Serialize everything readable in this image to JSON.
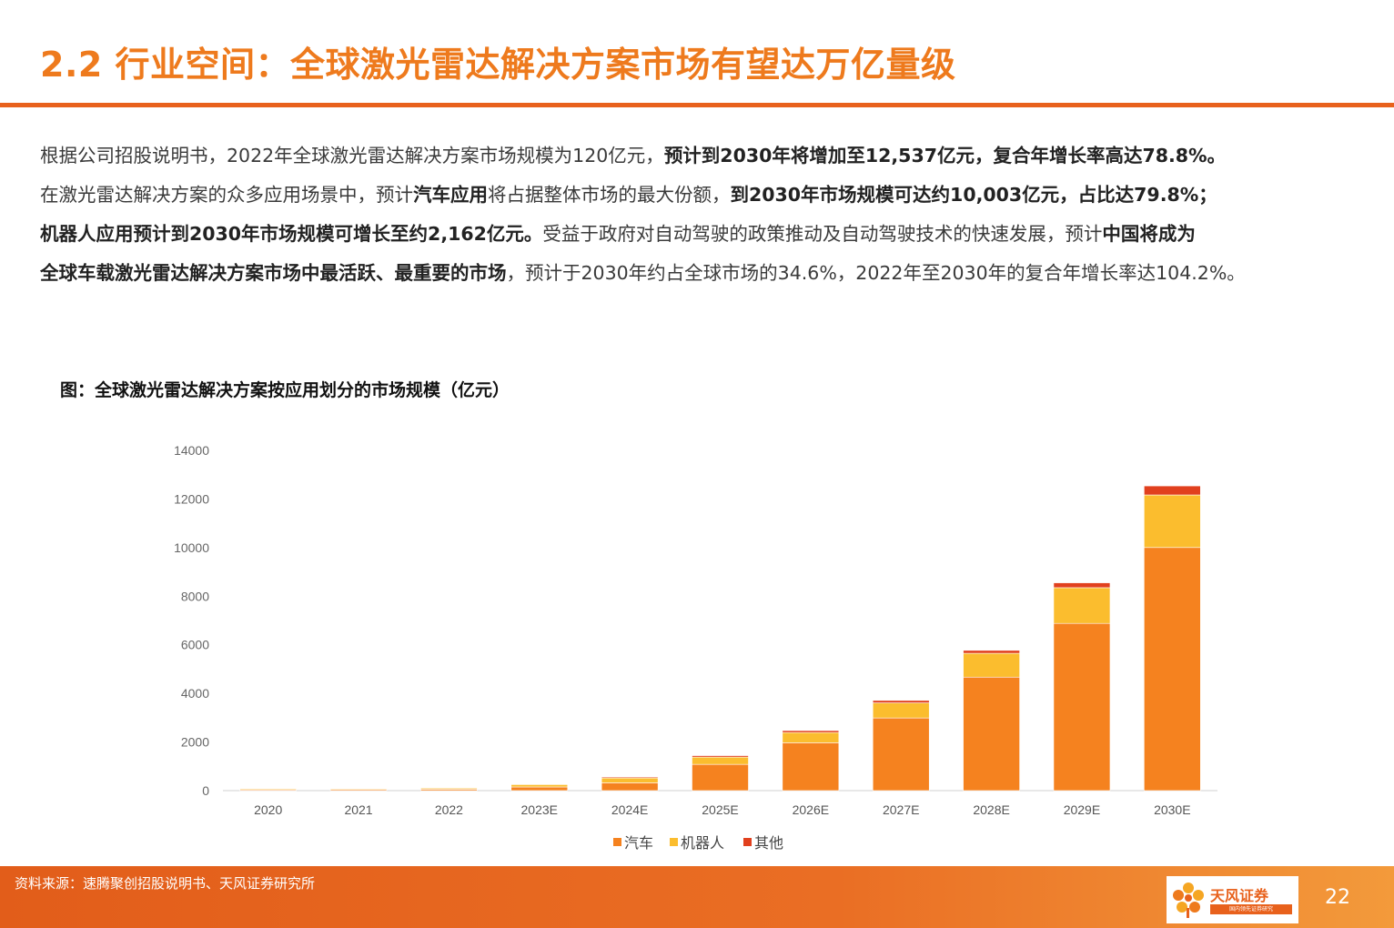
{
  "header": {
    "title": "2.2 行业空间：全球激光雷达解决方案市场有望达万亿量级"
  },
  "body": {
    "lines": [
      [
        {
          "text": "根据公司招股说明书，2022年全球激光雷达解决方案市场规模为120亿元，",
          "bold": false
        },
        {
          "text": "预计到2030年将增加至12,537亿元，复合年增长率高达78.8%。",
          "bold": true
        }
      ],
      [
        {
          "text": "在激光雷达解决方案的众多应用场景中，预计",
          "bold": false
        },
        {
          "text": "汽车应用",
          "bold": true
        },
        {
          "text": "将占据整体市场的最大份额，",
          "bold": false
        },
        {
          "text": "到2030年市场规模可达约10,003亿元，占比达79.8%；",
          "bold": true
        }
      ],
      [
        {
          "text": "机器人应用预计到2030年市场规模可增长至约2,162亿元。",
          "bold": true
        },
        {
          "text": "受益于政府对自动驾驶的政策推动及自动驾驶技术的快速发展，预计",
          "bold": false
        },
        {
          "text": "中国将成为",
          "bold": true
        }
      ],
      [
        {
          "text": "全球车载激光雷达解决方案市场中最活跃、最重要的市场",
          "bold": true
        },
        {
          "text": "，预计于2030年约占全球市场的34.6%，2022年至2030年的复合年增长率达104.2%。",
          "bold": false
        }
      ]
    ]
  },
  "figure": {
    "caption": "图：全球激光雷达解决方案按应用划分的市场规模（亿元）"
  },
  "chart_data": {
    "type": "bar",
    "stacked": true,
    "categories": [
      "2020",
      "2021",
      "2022",
      "2023E",
      "2024E",
      "2025E",
      "2026E",
      "2027E",
      "2028E",
      "2029E",
      "2030E"
    ],
    "series": [
      {
        "name": "汽车",
        "color": "#f5821f",
        "values": [
          40,
          45,
          60,
          150,
          320,
          1080,
          1970,
          2990,
          4670,
          6880,
          10003
        ]
      },
      {
        "name": "机器人",
        "color": "#fbbd2e",
        "values": [
          40,
          35,
          45,
          100,
          200,
          300,
          420,
          620,
          980,
          1470,
          2162
        ]
      },
      {
        "name": "其他",
        "color": "#e1401e",
        "values": [
          20,
          20,
          15,
          20,
          40,
          60,
          80,
          100,
          120,
          200,
          372
        ]
      }
    ],
    "ylim": [
      0,
      14000
    ],
    "yticks": [
      "0",
      "2000",
      "4000",
      "6000",
      "8000",
      "10000",
      "12000",
      "14000"
    ],
    "legend_position": "bottom-center",
    "grid": false
  },
  "footer": {
    "source": "资料来源：速腾聚创招股说明书、天风证券研究所",
    "logo_name": "天风证券",
    "logo_sub": "国内领先证券研究",
    "page_number": "22"
  }
}
